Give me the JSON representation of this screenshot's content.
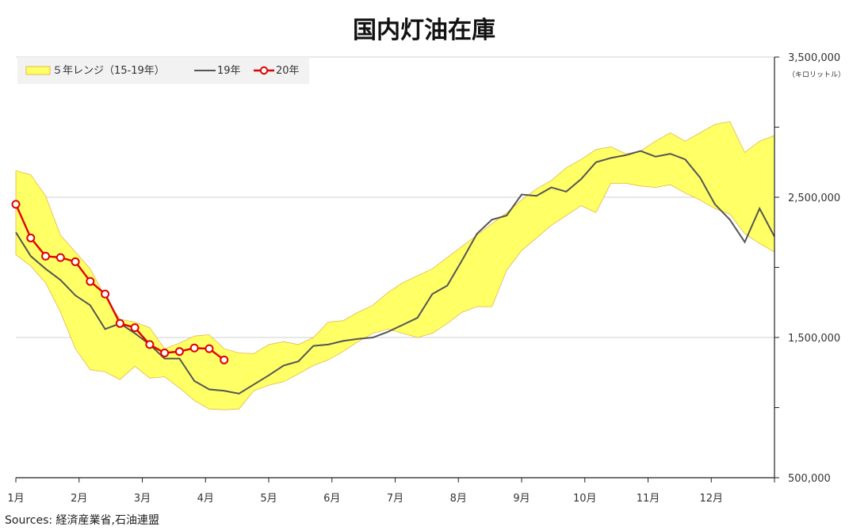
{
  "chart_data": {
    "type": "line",
    "title": "国内灯油在庫",
    "y_unit": "（キロリットル）",
    "source": "Sources: 経済産業省,石油連盟",
    "ylim": [
      500000,
      3500000
    ],
    "y_ticks": [
      {
        "value": 3500000,
        "label": "3,500,000"
      },
      {
        "value": 2500000,
        "label": "2,500,000"
      },
      {
        "value": 1500000,
        "label": "1,500,000"
      },
      {
        "value": 500000,
        "label": "500,000"
      }
    ],
    "x_ticks": [
      "1月",
      "2月",
      "3月",
      "4月",
      "5月",
      "6月",
      "7月",
      "8月",
      "9月",
      "10月",
      "11月",
      "12月"
    ],
    "x_range_weeks": [
      1,
      52
    ],
    "legend": {
      "position": "top-left",
      "range_label": "５年レンジ（15-19年）",
      "line19_label": "19年",
      "line20_label": "20年"
    },
    "colors": {
      "range_fill": "#ffff66",
      "range_edge": "#e6b84a",
      "line19": "#555555",
      "line20": "#e00000",
      "grid": "#d0d0d0",
      "legend_bg": "#f2f2f2"
    },
    "series": [
      {
        "name": "５年レンジ（15-19年）",
        "type": "range",
        "x": [
          1,
          2,
          3,
          4,
          5,
          6,
          7,
          8,
          9,
          10,
          11,
          12,
          13,
          14,
          15,
          16,
          17,
          18,
          19,
          20,
          21,
          22,
          23,
          24,
          25,
          26,
          27,
          28,
          29,
          30,
          31,
          32,
          33,
          34,
          35,
          36,
          37,
          38,
          39,
          40,
          41,
          42,
          43,
          44,
          45,
          46,
          47,
          48,
          49,
          50,
          51,
          52
        ],
        "max": [
          2690000,
          2660000,
          2510000,
          2230000,
          2110000,
          1990000,
          1790000,
          1630000,
          1610000,
          1570000,
          1420000,
          1460000,
          1510000,
          1520000,
          1420000,
          1390000,
          1385000,
          1450000,
          1470000,
          1450000,
          1500000,
          1610000,
          1620000,
          1680000,
          1730000,
          1820000,
          1890000,
          1940000,
          1990000,
          2070000,
          2150000,
          2230000,
          2310000,
          2390000,
          2480000,
          2560000,
          2620000,
          2710000,
          2770000,
          2840000,
          2860000,
          2810000,
          2830000,
          2900000,
          2960000,
          2900000,
          2960000,
          3020000,
          3040000,
          2820000,
          2900000,
          2940000
        ],
        "min": [
          2090000,
          2010000,
          1890000,
          1680000,
          1420000,
          1270000,
          1255000,
          1200000,
          1295000,
          1210000,
          1220000,
          1140000,
          1050000,
          990000,
          985000,
          990000,
          1120000,
          1160000,
          1185000,
          1240000,
          1300000,
          1340000,
          1400000,
          1470000,
          1530000,
          1560000,
          1530000,
          1500000,
          1530000,
          1600000,
          1680000,
          1720000,
          1720000,
          1980000,
          2120000,
          2210000,
          2300000,
          2370000,
          2440000,
          2390000,
          2600000,
          2600000,
          2580000,
          2570000,
          2590000,
          2530000,
          2480000,
          2420000,
          2380000,
          2240000,
          2170000,
          2110000
        ]
      },
      {
        "name": "19年",
        "x": [
          1,
          2,
          3,
          4,
          5,
          6,
          7,
          8,
          9,
          10,
          11,
          12,
          13,
          14,
          15,
          16,
          17,
          18,
          19,
          20,
          21,
          22,
          23,
          24,
          25,
          26,
          27,
          28,
          29,
          30,
          31,
          32,
          33,
          34,
          35,
          36,
          37,
          38,
          39,
          40,
          41,
          42,
          43,
          44,
          45,
          46,
          47,
          48,
          49,
          50,
          51,
          52
        ],
        "values": [
          2250000,
          2080000,
          1990000,
          1910000,
          1800000,
          1730000,
          1560000,
          1600000,
          1530000,
          1450000,
          1350000,
          1350000,
          1190000,
          1130000,
          1120000,
          1100000,
          1165000,
          1230000,
          1300000,
          1330000,
          1440000,
          1450000,
          1475000,
          1490000,
          1500000,
          1540000,
          1590000,
          1640000,
          1810000,
          1870000,
          2050000,
          2240000,
          2340000,
          2370000,
          2520000,
          2510000,
          2570000,
          2540000,
          2630000,
          2750000,
          2780000,
          2800000,
          2830000,
          2790000,
          2810000,
          2770000,
          2640000,
          2450000,
          2340000,
          2180000,
          2420000,
          2220000
        ]
      },
      {
        "name": "20年",
        "x": [
          1,
          2,
          3,
          4,
          5,
          6,
          7,
          8,
          9,
          10,
          11,
          12,
          13,
          14,
          15
        ],
        "values": [
          2450000,
          2210000,
          2080000,
          2070000,
          2040000,
          1900000,
          1810000,
          1600000,
          1570000,
          1450000,
          1390000,
          1400000,
          1425000,
          1420000,
          1340000
        ]
      }
    ]
  }
}
